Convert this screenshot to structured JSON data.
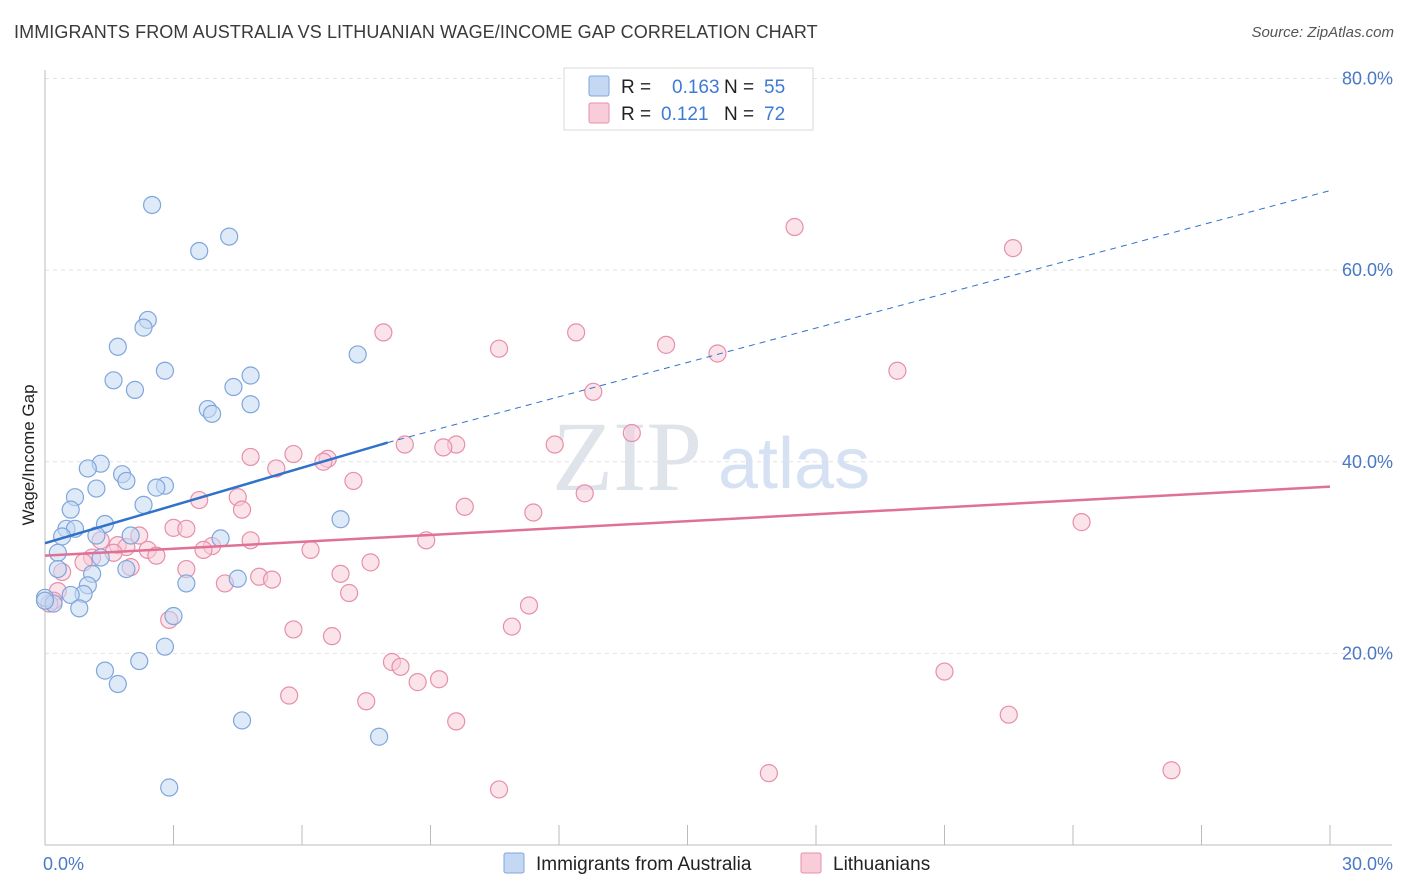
{
  "header": {
    "title": "IMMIGRANTS FROM AUSTRALIA VS LITHUANIAN WAGE/INCOME GAP CORRELATION CHART",
    "source": "Source: ZipAtlas.com"
  },
  "watermark": {
    "zip": "ZIP",
    "atlas": "atlas"
  },
  "legend_top": {
    "r_label": "R =",
    "n_label": "N =",
    "rows": [
      {
        "r": "0.163",
        "n": "55"
      },
      {
        "r": "0.121",
        "n": "72"
      }
    ]
  },
  "legend_bottom": [
    "Immigrants from Australia",
    "Lithuanians"
  ],
  "chart_data": {
    "type": "scatter",
    "title": "IMMIGRANTS FROM AUSTRALIA VS LITHUANIAN WAGE/INCOME GAP CORRELATION CHART",
    "xlabel": "",
    "ylabel": "Wage/Income Gap",
    "xlim": [
      0,
      30
    ],
    "ylim": [
      0,
      80
    ],
    "x_tick_labels": [
      "0.0%",
      "30.0%"
    ],
    "y_ticks": [
      20,
      40,
      60,
      80
    ],
    "y_tick_labels": [
      "20.0%",
      "40.0%",
      "60.0%",
      "80.0%"
    ],
    "grid": true,
    "legend_placement": "top-center",
    "colors": {
      "blue_fill": "#c5d8f3",
      "blue_stroke": "#7fa6dd",
      "blue_line": "#2f72c9",
      "pink_fill": "#f8ccd9",
      "pink_stroke": "#e78fab",
      "pink_line": "#e07096",
      "accent_text": "#3e7bd6"
    },
    "series": [
      {
        "name": "Immigrants from Australia",
        "R": 0.163,
        "N": 55,
        "trend": {
          "x": [
            0,
            8
          ],
          "y": [
            31.5,
            42.0
          ],
          "dashed_to": [
            30,
            68.3
          ]
        },
        "points": [
          [
            2.5,
            66.8
          ],
          [
            3.6,
            62.0
          ],
          [
            4.3,
            63.5
          ],
          [
            2.4,
            54.8
          ],
          [
            2.3,
            54.0
          ],
          [
            1.7,
            52.0
          ],
          [
            7.3,
            51.2
          ],
          [
            2.8,
            49.5
          ],
          [
            4.8,
            49.0
          ],
          [
            1.6,
            48.5
          ],
          [
            2.1,
            47.5
          ],
          [
            4.4,
            47.8
          ],
          [
            4.8,
            46.0
          ],
          [
            3.8,
            45.5
          ],
          [
            3.9,
            45.0
          ],
          [
            1.3,
            39.8
          ],
          [
            1.0,
            39.3
          ],
          [
            1.8,
            38.7
          ],
          [
            1.9,
            38.0
          ],
          [
            2.8,
            37.5
          ],
          [
            2.6,
            37.3
          ],
          [
            1.2,
            37.2
          ],
          [
            0.7,
            36.3
          ],
          [
            2.3,
            35.5
          ],
          [
            0.6,
            35.0
          ],
          [
            6.9,
            34.0
          ],
          [
            1.4,
            33.5
          ],
          [
            0.5,
            33.0
          ],
          [
            0.7,
            33.0
          ],
          [
            1.2,
            32.3
          ],
          [
            4.1,
            32.0
          ],
          [
            2.0,
            32.3
          ],
          [
            0.4,
            32.2
          ],
          [
            0.3,
            30.5
          ],
          [
            1.3,
            30.0
          ],
          [
            0.3,
            28.8
          ],
          [
            1.9,
            28.8
          ],
          [
            1.1,
            28.3
          ],
          [
            4.5,
            27.8
          ],
          [
            3.3,
            27.3
          ],
          [
            1.0,
            27.1
          ],
          [
            0.9,
            26.2
          ],
          [
            0.6,
            26.1
          ],
          [
            0.0,
            25.8
          ],
          [
            0.2,
            25.2
          ],
          [
            0.8,
            24.7
          ],
          [
            3.0,
            23.9
          ],
          [
            2.8,
            20.7
          ],
          [
            2.2,
            19.2
          ],
          [
            1.4,
            18.2
          ],
          [
            1.7,
            16.8
          ],
          [
            4.6,
            13.0
          ],
          [
            7.8,
            11.3
          ],
          [
            2.9,
            6.0
          ],
          [
            0.0,
            25.5
          ]
        ]
      },
      {
        "name": "Lithuanians",
        "R": 0.121,
        "N": 72,
        "trend": {
          "x": [
            0,
            30
          ],
          "y": [
            30.2,
            37.4
          ]
        },
        "points": [
          [
            17.5,
            64.5
          ],
          [
            22.6,
            62.3
          ],
          [
            7.9,
            53.5
          ],
          [
            12.4,
            53.5
          ],
          [
            10.6,
            51.8
          ],
          [
            14.5,
            52.2
          ],
          [
            15.7,
            51.3
          ],
          [
            19.9,
            49.5
          ],
          [
            12.8,
            47.3
          ],
          [
            13.7,
            43.0
          ],
          [
            8.4,
            41.8
          ],
          [
            9.6,
            41.8
          ],
          [
            9.3,
            41.5
          ],
          [
            11.9,
            41.8
          ],
          [
            5.8,
            40.8
          ],
          [
            4.8,
            40.5
          ],
          [
            6.6,
            40.3
          ],
          [
            6.5,
            40.0
          ],
          [
            5.4,
            39.3
          ],
          [
            7.2,
            38.0
          ],
          [
            12.6,
            36.7
          ],
          [
            4.5,
            36.3
          ],
          [
            3.6,
            36.0
          ],
          [
            9.8,
            35.3
          ],
          [
            4.6,
            35.0
          ],
          [
            11.4,
            34.7
          ],
          [
            24.2,
            33.7
          ],
          [
            3.0,
            33.1
          ],
          [
            3.3,
            33.0
          ],
          [
            2.2,
            32.3
          ],
          [
            4.8,
            31.8
          ],
          [
            8.9,
            31.8
          ],
          [
            1.3,
            31.8
          ],
          [
            1.7,
            31.3
          ],
          [
            3.9,
            31.2
          ],
          [
            1.9,
            31.1
          ],
          [
            1.6,
            30.5
          ],
          [
            3.7,
            30.8
          ],
          [
            6.2,
            30.8
          ],
          [
            2.4,
            30.8
          ],
          [
            2.6,
            30.2
          ],
          [
            1.1,
            30.0
          ],
          [
            0.9,
            29.5
          ],
          [
            7.6,
            29.5
          ],
          [
            2.0,
            29.0
          ],
          [
            3.3,
            28.8
          ],
          [
            0.4,
            28.5
          ],
          [
            6.9,
            28.3
          ],
          [
            5.0,
            28.0
          ],
          [
            5.3,
            27.7
          ],
          [
            4.2,
            27.3
          ],
          [
            0.3,
            26.5
          ],
          [
            7.1,
            26.3
          ],
          [
            0.2,
            25.5
          ],
          [
            0.1,
            25.2
          ],
          [
            11.3,
            25.0
          ],
          [
            2.9,
            23.5
          ],
          [
            10.9,
            22.8
          ],
          [
            5.8,
            22.5
          ],
          [
            6.7,
            21.8
          ],
          [
            8.1,
            19.1
          ],
          [
            8.3,
            18.6
          ],
          [
            21.0,
            18.1
          ],
          [
            8.7,
            17.0
          ],
          [
            9.2,
            17.3
          ],
          [
            5.7,
            15.6
          ],
          [
            7.5,
            15.0
          ],
          [
            22.5,
            13.6
          ],
          [
            9.6,
            12.9
          ],
          [
            16.9,
            7.5
          ],
          [
            26.3,
            7.8
          ],
          [
            10.6,
            5.8
          ]
        ]
      }
    ]
  }
}
